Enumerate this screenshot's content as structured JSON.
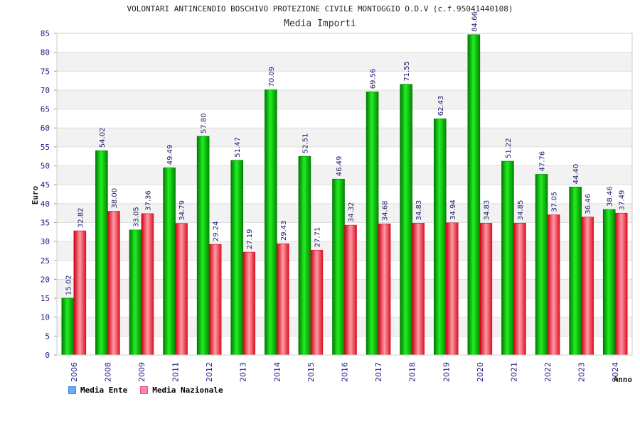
{
  "chart_data": {
    "type": "bar",
    "title": "VOLONTARI ANTINCENDIO BOSCHIVO PROTEZIONE CIVILE MONTOGGIO O.D.V (c.f.95041440108)",
    "subtitle": "Media Importi",
    "xlabel": "Anno",
    "ylabel": "Euro",
    "ylim": [
      0,
      85
    ],
    "yticks": [
      0,
      5,
      10,
      15,
      20,
      25,
      30,
      35,
      40,
      45,
      50,
      55,
      60,
      65,
      70,
      75,
      80,
      85
    ],
    "categories": [
      "2006",
      "2008",
      "2009",
      "2011",
      "2012",
      "2013",
      "2014",
      "2015",
      "2016",
      "2017",
      "2018",
      "2019",
      "2020",
      "2021",
      "2022",
      "2023",
      "2024"
    ],
    "series": [
      {
        "name": "Media Ente",
        "color": "#00bb00",
        "legend_color": "#66aaff",
        "values": [
          15.02,
          54.02,
          33.05,
          49.49,
          57.8,
          51.47,
          70.09,
          52.51,
          46.49,
          69.56,
          71.55,
          62.43,
          84.66,
          51.22,
          47.76,
          44.4,
          38.46
        ],
        "labels": [
          "15.02",
          "54.02",
          "33.05",
          "49.49",
          "57.80",
          "51.47",
          "70.09",
          "52.51",
          "46.49",
          "69.56",
          "71.55",
          "62.43",
          "84.66",
          "51.22",
          "47.76",
          "44.40",
          "38.46"
        ]
      },
      {
        "name": "Media Nazionale",
        "color": "#ee3344",
        "legend_color": "#ff88aa",
        "values": [
          32.82,
          38.0,
          37.36,
          34.79,
          29.24,
          27.19,
          29.43,
          27.71,
          34.32,
          34.68,
          34.83,
          34.94,
          34.83,
          34.85,
          37.05,
          36.46,
          37.49
        ],
        "labels": [
          "32.82",
          "38.00",
          "37.36",
          "34.79",
          "29.24",
          "27.19",
          "29.43",
          "27.71",
          "34.32",
          "34.68",
          "34.83",
          "34.94",
          "34.83",
          "34.85",
          "37.05",
          "36.46",
          "37.49"
        ]
      }
    ],
    "grid": true,
    "legend_position": "bottom-left"
  }
}
